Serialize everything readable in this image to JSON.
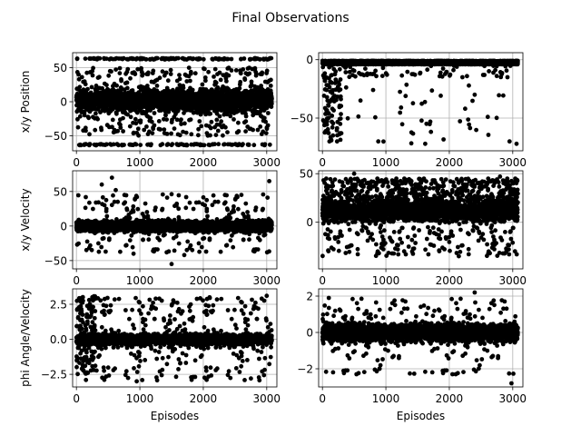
{
  "figure": {
    "title": "Final Observations",
    "marker_color": "#000000",
    "grid_color": "#b0b0b0"
  },
  "chart_data": [
    {
      "type": "scatter",
      "panel": "top-left",
      "ylabel": "x/y Position",
      "xlabel": "",
      "xlim": [
        -60,
        3160
      ],
      "ylim": [
        -72,
        72
      ],
      "xticks": [
        0,
        1000,
        2000,
        3000
      ],
      "yticks": [
        -50,
        0,
        50
      ],
      "grid": true,
      "n_points": 3080,
      "distribution": "dense band roughly -30 to 35 across all episodes, scattered outliers to -50/50, rows of saturated points at about +63 and -63",
      "sample_points": [
        [
          12,
          63
        ],
        [
          300,
          63
        ],
        [
          880,
          63
        ],
        [
          1500,
          63
        ],
        [
          2230,
          63
        ],
        [
          2950,
          63
        ],
        [
          60,
          -63
        ],
        [
          420,
          -63
        ],
        [
          1120,
          -63
        ],
        [
          1850,
          -63
        ],
        [
          2520,
          -63
        ],
        [
          3050,
          -63
        ],
        [
          250,
          45
        ],
        [
          1300,
          -40
        ],
        [
          2700,
          40
        ]
      ]
    },
    {
      "type": "scatter",
      "panel": "top-right",
      "ylabel": "",
      "xlabel": "",
      "xlim": [
        -60,
        3160
      ],
      "ylim": [
        -78,
        6
      ],
      "xticks": [
        0,
        1000,
        2000,
        3000
      ],
      "yticks": [
        -50,
        0
      ],
      "grid": true,
      "n_points": 3080,
      "distribution": "almost all points near -1 to -3, heavy spread down to -70 for episodes below 300, sparse drops to -70 afterwards",
      "sample_points": [
        [
          80,
          -35
        ],
        [
          150,
          -48
        ],
        [
          200,
          -20
        ],
        [
          230,
          -70
        ],
        [
          280,
          -55
        ],
        [
          600,
          -35
        ],
        [
          880,
          -70
        ],
        [
          1620,
          -72
        ],
        [
          1700,
          -53
        ],
        [
          2250,
          -42
        ],
        [
          2400,
          -30
        ],
        [
          2950,
          -70
        ],
        [
          3060,
          -72
        ]
      ]
    },
    {
      "type": "scatter",
      "panel": "middle-left",
      "ylabel": "x/y Velocity",
      "xlabel": "",
      "xlim": [
        -60,
        3160
      ],
      "ylim": [
        -62,
        80
      ],
      "xticks": [
        0,
        1000,
        2000,
        3000
      ],
      "yticks": [
        -50,
        0,
        50
      ],
      "grid": true,
      "n_points": 3080,
      "distribution": "dense band -10 to 10, frequent scatter between -30 and 45, outliers to 70 and -55",
      "sample_points": [
        [
          400,
          60
        ],
        [
          560,
          70
        ],
        [
          620,
          52
        ],
        [
          3040,
          65
        ],
        [
          1500,
          -55
        ],
        [
          1700,
          -42
        ],
        [
          2600,
          45
        ],
        [
          900,
          -40
        ]
      ]
    },
    {
      "type": "scatter",
      "panel": "middle-right",
      "ylabel": "",
      "xlabel": "",
      "xlim": [
        -60,
        3160
      ],
      "ylim": [
        -48,
        53
      ],
      "xticks": [
        0,
        1000,
        2000,
        3000
      ],
      "yticks": [
        0,
        50
      ],
      "grid": true,
      "n_points": 3080,
      "distribution": "dense band 0 to 40 across all episodes, occasional drops to -30",
      "sample_points": [
        [
          60,
          45
        ],
        [
          500,
          50
        ],
        [
          1600,
          45
        ],
        [
          2800,
          47
        ],
        [
          420,
          -25
        ],
        [
          1100,
          -20
        ],
        [
          2150,
          -35
        ],
        [
          2900,
          -30
        ]
      ]
    },
    {
      "type": "scatter",
      "panel": "bottom-left",
      "ylabel": "phi Angle/Velocity",
      "xlabel": "Episodes",
      "xlim": [
        -60,
        3160
      ],
      "ylim": [
        -3.4,
        3.6
      ],
      "xticks": [
        0,
        1000,
        2000,
        3000
      ],
      "yticks": [
        -2.5,
        0.0,
        2.5
      ],
      "ytick_labels": [
        "−2.5",
        "0.0",
        "2.5"
      ],
      "grid": true,
      "n_points": 3080,
      "distribution": "dense band -0.8 to 0.8, wide spread -2.5 to 3 for episodes below 300, sparse outliers to ±3 afterwards",
      "sample_points": [
        [
          100,
          3.0
        ],
        [
          150,
          -2.9
        ],
        [
          200,
          2.8
        ],
        [
          950,
          -3.0
        ],
        [
          1250,
          2.9
        ],
        [
          2100,
          3.0
        ],
        [
          3000,
          3.1
        ],
        [
          2750,
          -2.8
        ]
      ]
    },
    {
      "type": "scatter",
      "panel": "bottom-right",
      "ylabel": "",
      "xlabel": "Episodes",
      "xlim": [
        -60,
        3160
      ],
      "ylim": [
        -3.0,
        2.4
      ],
      "xticks": [
        0,
        1000,
        2000,
        3000
      ],
      "yticks": [
        -2,
        0,
        2
      ],
      "ytick_labels": [
        "−2",
        "0",
        "2"
      ],
      "grid": true,
      "n_points": 3080,
      "distribution": "dense band -1 to 1 across all episodes, outliers to 2.2 and -2.8",
      "sample_points": [
        [
          100,
          1.9
        ],
        [
          2400,
          2.2
        ],
        [
          900,
          -2.0
        ],
        [
          2050,
          -2.3
        ],
        [
          2980,
          -2.8
        ]
      ]
    }
  ]
}
